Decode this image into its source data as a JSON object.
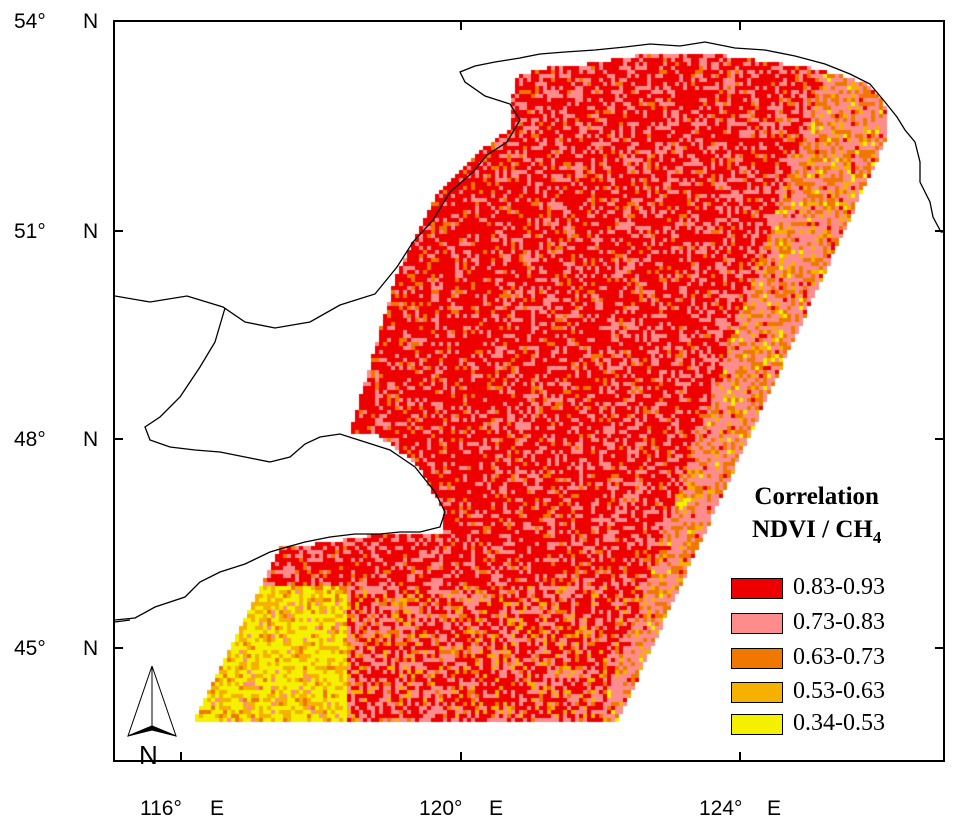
{
  "map": {
    "lat_labels": [
      {
        "deg": "54°",
        "hemi": "N"
      },
      {
        "deg": "51°",
        "hemi": "N"
      },
      {
        "deg": "48°",
        "hemi": "N"
      },
      {
        "deg": "45°",
        "hemi": "N"
      }
    ],
    "lon_labels": [
      {
        "deg": "116°",
        "hemi": "E"
      },
      {
        "deg": "120°",
        "hemi": "E"
      },
      {
        "deg": "124°",
        "hemi": "E"
      }
    ],
    "north_arrow_label": "N",
    "boundary_color": "#000000",
    "background_color": "#ffffff"
  },
  "legend": {
    "title_line1": "Correlation",
    "title_line2_prefix": "NDVI / CH",
    "title_line2_subscript": "4",
    "classes": [
      {
        "label": "0.83-0.93",
        "color": "#ee0000"
      },
      {
        "label": "0.73-0.83",
        "color": "#ff8c8c"
      },
      {
        "label": "0.63-0.73",
        "color": "#f07800"
      },
      {
        "label": "0.53-0.63",
        "color": "#f5b000"
      },
      {
        "label": "0.34-0.53",
        "color": "#f5f000"
      }
    ]
  }
}
